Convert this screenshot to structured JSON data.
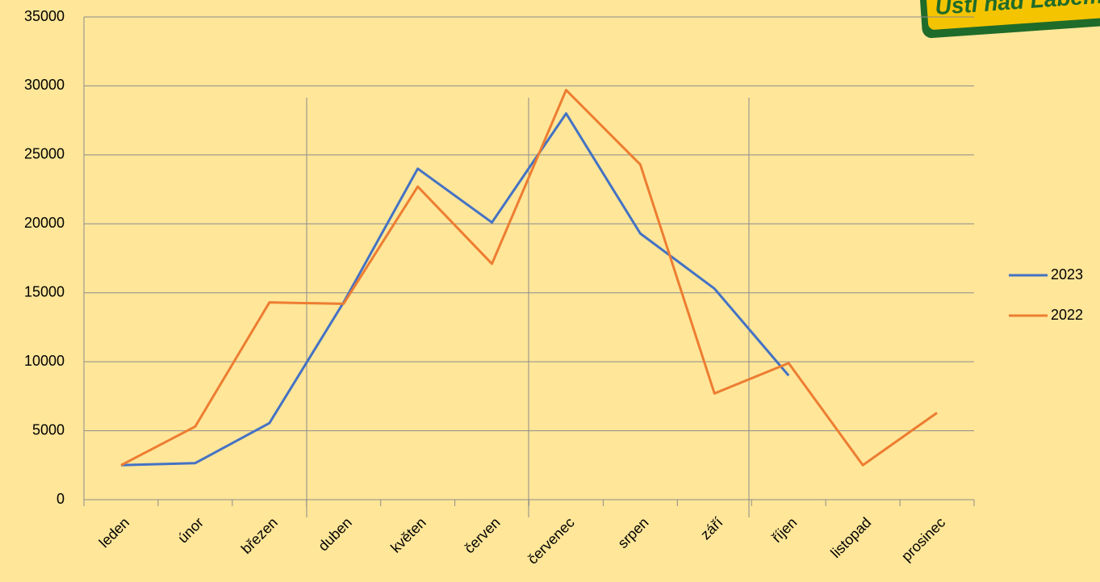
{
  "chart_data": {
    "type": "line",
    "logo_text": "Ústí nad Labem",
    "categories": [
      "leden",
      "únor",
      "březen",
      "duben",
      "květen",
      "červen",
      "červenec",
      "srpen",
      "září",
      "říjen",
      "listopad",
      "prosinec"
    ],
    "series": [
      {
        "name": "2023",
        "color": "#4472c4",
        "values": [
          2500,
          2650,
          5550,
          14300,
          24000,
          20100,
          28000,
          19300,
          15300,
          9000,
          null,
          null
        ]
      },
      {
        "name": "2022",
        "color": "#ed7d31",
        "values": [
          2500,
          5300,
          14300,
          14200,
          22700,
          17100,
          29700,
          24300,
          7700,
          9900,
          2500,
          6300
        ]
      }
    ],
    "ylim": [
      0,
      35000
    ],
    "yticks": [
      0,
      5000,
      10000,
      15000,
      20000,
      25000,
      30000,
      35000
    ],
    "grid": true,
    "legend": "right"
  }
}
